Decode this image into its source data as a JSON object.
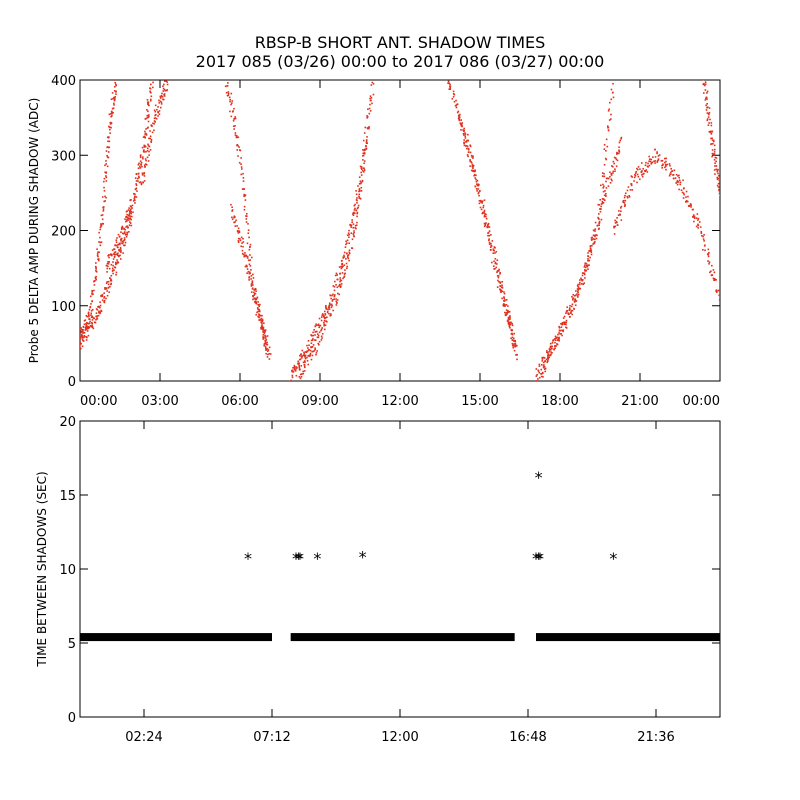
{
  "title": {
    "line1": "RBSP-B SHORT ANT. SHADOW TIMES",
    "line2": "2017 085 (03/26) 00:00 to 2017 086 (03/27) 00:00"
  },
  "colors": {
    "amp": "#e0301e",
    "ink": "#000000"
  },
  "chart_data": [
    {
      "type": "scatter",
      "ylabel": "Probe 5 DELTA AMP DURING SHADOW (ADC)",
      "xlim": [
        0,
        24
      ],
      "ylim": [
        0,
        400
      ],
      "x_ticks": [
        0,
        3,
        6,
        9,
        12,
        15,
        18,
        21,
        24
      ],
      "x_tick_labels": [
        "00:00",
        "03:00",
        "06:00",
        "09:00",
        "12:00",
        "15:00",
        "18:00",
        "21:00",
        "00:00"
      ],
      "y_ticks": [
        0,
        100,
        200,
        300,
        400
      ],
      "y_tick_labels": [
        "0",
        "100",
        "200",
        "300",
        "400"
      ],
      "grid": false,
      "series": [
        {
          "color": "#e0301e",
          "tracks": [
            {
              "x": [
                0.0,
                0.4,
                0.8,
                1.1,
                1.35
              ],
              "y": [
                60,
                90,
                200,
                330,
                400
              ]
            },
            {
              "x": [
                0.0,
                0.5,
                1.0,
                1.5,
                2.0
              ],
              "y": [
                50,
                80,
                120,
                170,
                230
              ]
            },
            {
              "x": [
                1.0,
                1.5,
                2.0,
                2.4,
                2.7
              ],
              "y": [
                150,
                190,
                240,
                310,
                400
              ]
            },
            {
              "x": [
                2.3,
                2.8,
                3.3
              ],
              "y": [
                260,
                350,
                400
              ]
            },
            {
              "x": [
                5.5,
                6.0,
                6.5,
                7.0
              ],
              "y": [
                400,
                300,
                120,
                50
              ]
            },
            {
              "x": [
                5.7,
                6.3,
                6.8,
                7.1
              ],
              "y": [
                230,
                150,
                80,
                30
              ]
            },
            {
              "x": [
                7.9,
                8.5,
                9.2,
                9.9,
                10.5,
                11.0
              ],
              "y": [
                5,
                40,
                90,
                160,
                260,
                400
              ]
            },
            {
              "x": [
                8.2,
                8.9,
                9.6,
                10.3,
                10.8
              ],
              "y": [
                10,
                50,
                110,
                200,
                330
              ]
            },
            {
              "x": [
                13.8,
                14.5,
                15.2,
                16.0,
                16.4
              ],
              "y": [
                400,
                320,
                210,
                90,
                35
              ]
            },
            {
              "x": [
                14.2,
                15.0,
                15.8,
                16.3
              ],
              "y": [
                350,
                250,
                130,
                50
              ]
            },
            {
              "x": [
                17.1,
                17.8,
                18.6,
                19.4,
                20.0
              ],
              "y": [
                5,
                50,
                110,
                200,
                400
              ]
            },
            {
              "x": [
                17.3,
                18.1,
                19.0,
                19.7,
                20.3
              ],
              "y": [
                10,
                70,
                150,
                250,
                320
              ]
            },
            {
              "x": [
                20.0,
                20.8,
                21.6,
                22.4,
                23.2,
                24.0
              ],
              "y": [
                200,
                270,
                300,
                270,
                210,
                110
              ]
            },
            {
              "x": [
                23.4,
                23.7,
                24.0
              ],
              "y": [
                400,
                320,
                250
              ]
            }
          ]
        }
      ]
    },
    {
      "type": "scatter",
      "ylabel": "TIME BETWEEN SHADOWS (SEC)",
      "xlim": [
        0,
        24
      ],
      "ylim": [
        0,
        20
      ],
      "x_ticks": [
        2.4,
        7.2,
        12.0,
        16.8,
        21.6
      ],
      "x_tick_labels": [
        "02:24",
        "07:12",
        "12:00",
        "16:48",
        "21:36"
      ],
      "y_ticks": [
        0,
        5,
        10,
        15,
        20
      ],
      "y_tick_labels": [
        "0",
        "5",
        "10",
        "15",
        "20"
      ],
      "grid": false,
      "marker": "asterisk",
      "series": [
        {
          "baseline_value": 5.4,
          "baseline_ranges": [
            [
              0.0,
              7.2
            ],
            [
              7.9,
              16.3
            ],
            [
              17.1,
              24.0
            ]
          ],
          "x": [
            6.3,
            8.1,
            8.2,
            8.25,
            8.9,
            10.6,
            17.1,
            17.2,
            17.25,
            17.2,
            20.0
          ],
          "y": [
            10.8,
            10.8,
            10.8,
            10.8,
            10.8,
            10.9,
            10.8,
            10.8,
            10.8,
            16.3,
            10.8
          ]
        }
      ]
    }
  ]
}
